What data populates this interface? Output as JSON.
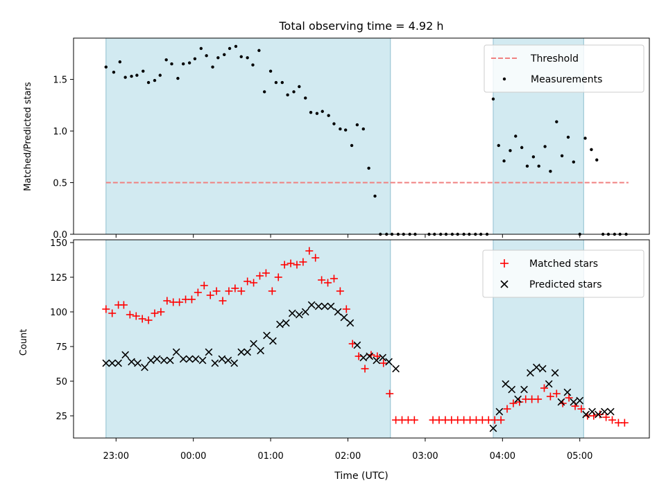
{
  "figure_title": "Total observing time = 4.92 h",
  "chart_data": [
    {
      "type": "scatter",
      "ylabel": "Matched/Predicted stars",
      "ylim": [
        0,
        1.9
      ],
      "yticks": [
        0.0,
        0.5,
        1.0,
        1.5
      ],
      "ytick_labels": [
        "0.0",
        "0.5",
        "1.0",
        "1.5"
      ],
      "threshold": {
        "label": "Threshold",
        "value": 0.5,
        "x_range": [
          -1.13,
          5.63
        ],
        "color": "#f08080",
        "style": "dashed"
      },
      "shaded_regions": [
        [
          -1.13,
          2.55
        ],
        [
          3.88,
          5.05
        ]
      ],
      "shade_color": "#add8e6",
      "legend": {
        "position": "upper right",
        "entries": [
          "Threshold",
          "Measurements"
        ]
      },
      "series": [
        {
          "name": "Measurements",
          "marker": "dot",
          "color": "#000000",
          "x": [
            -1.13,
            -1.03,
            -0.95,
            -0.88,
            -0.8,
            -0.73,
            -0.65,
            -0.58,
            -0.5,
            -0.43,
            -0.35,
            -0.28,
            -0.2,
            -0.13,
            -0.05,
            0.02,
            0.1,
            0.17,
            0.25,
            0.32,
            0.4,
            0.47,
            0.55,
            0.62,
            0.7,
            0.77,
            0.85,
            0.92,
            1.0,
            1.07,
            1.15,
            1.22,
            1.3,
            1.37,
            1.45,
            1.52,
            1.6,
            1.67,
            1.75,
            1.82,
            1.9,
            1.97,
            2.05,
            2.12,
            2.2,
            2.27,
            2.35,
            2.42,
            2.5,
            2.57,
            2.65,
            2.72,
            2.8,
            2.87,
            3.05,
            3.12,
            3.2,
            3.27,
            3.35,
            3.42,
            3.5,
            3.57,
            3.65,
            3.72,
            3.8,
            3.88,
            3.95,
            4.02,
            4.1,
            4.17,
            4.25,
            4.32,
            4.4,
            4.47,
            4.55,
            4.62,
            4.7,
            4.77,
            4.85,
            4.92,
            5.0,
            5.07,
            5.15,
            5.22,
            5.3,
            5.37,
            5.45,
            5.52,
            5.6
          ],
          "y": [
            1.62,
            1.57,
            1.67,
            1.52,
            1.53,
            1.54,
            1.58,
            1.47,
            1.49,
            1.54,
            1.69,
            1.65,
            1.51,
            1.65,
            1.66,
            1.7,
            1.8,
            1.73,
            1.62,
            1.71,
            1.74,
            1.8,
            1.82,
            1.72,
            1.71,
            1.64,
            1.78,
            1.38,
            1.58,
            1.47,
            1.47,
            1.35,
            1.38,
            1.43,
            1.32,
            1.18,
            1.17,
            1.19,
            1.15,
            1.07,
            1.02,
            1.01,
            0.86,
            1.06,
            1.02,
            0.64,
            0.37,
            0.0,
            0.0,
            0.0,
            0.0,
            0.0,
            0.0,
            0.0,
            0.0,
            0.0,
            0.0,
            0.0,
            0.0,
            0.0,
            0.0,
            0.0,
            0.0,
            0.0,
            0.0,
            1.31,
            0.86,
            0.71,
            0.81,
            0.95,
            0.84,
            0.66,
            0.75,
            0.66,
            0.85,
            0.61,
            1.09,
            0.76,
            0.94,
            0.7,
            0.0,
            0.93,
            0.82,
            0.72,
            0.0,
            0.0,
            0.0,
            0.0,
            0.0
          ]
        }
      ]
    },
    {
      "type": "scatter",
      "xlabel": "Time (UTC)",
      "ylabel": "Count",
      "ylim": [
        9,
        152
      ],
      "yticks": [
        25,
        50,
        75,
        100,
        125,
        150
      ],
      "ytick_labels": [
        "25",
        "50",
        "75",
        "100",
        "125",
        "150"
      ],
      "xlim": [
        -1.55,
        5.9
      ],
      "xticks": [
        -1,
        0,
        1,
        2,
        3,
        4,
        5
      ],
      "xtick_labels": [
        "23:00",
        "00:00",
        "01:00",
        "02:00",
        "03:00",
        "04:00",
        "05:00"
      ],
      "shaded_regions": [
        [
          -1.13,
          2.55
        ],
        [
          3.88,
          5.05
        ]
      ],
      "shade_color": "#add8e6",
      "legend": {
        "position": "upper right",
        "entries": [
          "Matched stars",
          "Predicted stars"
        ]
      },
      "series": [
        {
          "name": "Matched stars",
          "marker": "plus",
          "color": "#ff0000",
          "x": [
            -1.13,
            -1.05,
            -0.97,
            -0.9,
            -0.82,
            -0.74,
            -0.66,
            -0.58,
            -0.5,
            -0.42,
            -0.34,
            -0.26,
            -0.18,
            -0.1,
            -0.02,
            0.06,
            0.14,
            0.22,
            0.3,
            0.38,
            0.46,
            0.54,
            0.62,
            0.7,
            0.78,
            0.86,
            0.94,
            1.02,
            1.1,
            1.18,
            1.26,
            1.34,
            1.42,
            1.5,
            1.58,
            1.66,
            1.74,
            1.82,
            1.9,
            1.98,
            2.06,
            2.14,
            2.22,
            2.3,
            2.38,
            2.46,
            2.54,
            2.62,
            2.7,
            2.78,
            2.86,
            3.1,
            3.18,
            3.26,
            3.34,
            3.42,
            3.5,
            3.58,
            3.66,
            3.74,
            3.82,
            3.9,
            3.98,
            4.06,
            4.14,
            4.22,
            4.3,
            4.38,
            4.46,
            4.54,
            4.62,
            4.7,
            4.78,
            4.86,
            4.94,
            5.02,
            5.1,
            5.18,
            5.26,
            5.34,
            5.42,
            5.5,
            5.58
          ],
          "y": [
            102,
            99,
            105,
            105,
            98,
            97,
            95,
            94,
            99,
            100,
            108,
            107,
            107,
            109,
            109,
            114,
            119,
            112,
            115,
            108,
            115,
            117,
            115,
            122,
            121,
            126,
            128,
            115,
            125,
            134,
            135,
            134,
            136,
            144,
            139,
            123,
            121,
            124,
            115,
            102,
            77,
            68,
            59,
            69,
            68,
            63,
            41,
            22,
            22,
            22,
            22,
            22,
            22,
            22,
            22,
            22,
            22,
            22,
            22,
            22,
            22,
            22,
            22,
            30,
            34,
            35,
            37,
            37,
            37,
            45,
            39,
            41,
            34,
            38,
            32,
            30,
            25,
            25,
            26,
            24,
            22,
            20,
            20
          ]
        },
        {
          "name": "Predicted stars",
          "marker": "cross",
          "color": "#000000",
          "x": [
            -1.13,
            -1.05,
            -0.97,
            -0.88,
            -0.8,
            -0.72,
            -0.63,
            -0.55,
            -0.47,
            -0.38,
            -0.3,
            -0.22,
            -0.13,
            -0.05,
            0.03,
            0.12,
            0.2,
            0.28,
            0.37,
            0.45,
            0.53,
            0.62,
            0.7,
            0.78,
            0.87,
            0.95,
            1.03,
            1.12,
            1.2,
            1.28,
            1.37,
            1.45,
            1.53,
            1.62,
            1.7,
            1.78,
            1.87,
            1.95,
            2.03,
            2.12,
            2.2,
            2.28,
            2.37,
            2.45,
            2.53,
            2.62,
            3.88,
            3.96,
            4.04,
            4.12,
            4.2,
            4.28,
            4.36,
            4.44,
            4.52,
            4.6,
            4.68,
            4.76,
            4.84,
            4.92,
            5.0,
            5.08,
            5.16,
            5.24,
            5.32,
            5.4
          ],
          "y": [
            63,
            63,
            63,
            69,
            64,
            63,
            60,
            65,
            66,
            65,
            65,
            71,
            66,
            66,
            66,
            65,
            71,
            63,
            66,
            65,
            63,
            71,
            71,
            77,
            72,
            83,
            79,
            91,
            92,
            99,
            98,
            100,
            105,
            104,
            104,
            104,
            100,
            96,
            92,
            76,
            67,
            68,
            65,
            67,
            64,
            59,
            16,
            28,
            48,
            44,
            37,
            44,
            56,
            60,
            59,
            48,
            56,
            35,
            42,
            35,
            36,
            26,
            28,
            26,
            28,
            28
          ]
        }
      ]
    }
  ]
}
